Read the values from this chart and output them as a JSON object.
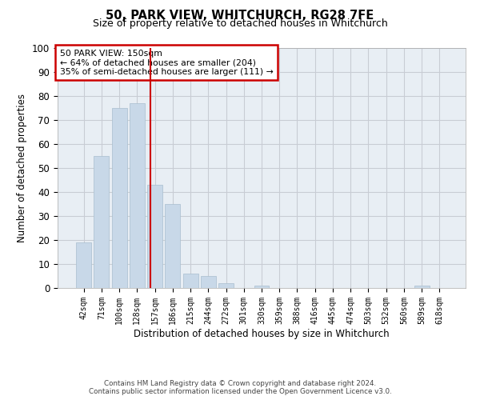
{
  "title": "50, PARK VIEW, WHITCHURCH, RG28 7FE",
  "subtitle": "Size of property relative to detached houses in Whitchurch",
  "xlabel": "Distribution of detached houses by size in Whitchurch",
  "ylabel": "Number of detached properties",
  "bar_labels": [
    "42sqm",
    "71sqm",
    "100sqm",
    "128sqm",
    "157sqm",
    "186sqm",
    "215sqm",
    "244sqm",
    "272sqm",
    "301sqm",
    "330sqm",
    "359sqm",
    "388sqm",
    "416sqm",
    "445sqm",
    "474sqm",
    "503sqm",
    "532sqm",
    "560sqm",
    "589sqm",
    "618sqm"
  ],
  "bar_values": [
    19,
    55,
    75,
    77,
    43,
    35,
    6,
    5,
    2,
    0,
    1,
    0,
    0,
    0,
    0,
    0,
    0,
    0,
    0,
    1,
    0
  ],
  "bar_color": "#c8d8e8",
  "bar_edge_color": "#a8bece",
  "grid_color": "#c8ccd4",
  "bg_color": "#e8eef4",
  "ylim": [
    0,
    100
  ],
  "yticks": [
    0,
    10,
    20,
    30,
    40,
    50,
    60,
    70,
    80,
    90,
    100
  ],
  "vline_pos": 3.76,
  "vline_color": "#cc0000",
  "annotation_text": "50 PARK VIEW: 150sqm\n← 64% of detached houses are smaller (204)\n35% of semi-detached houses are larger (111) →",
  "annotation_box_color": "#cc0000",
  "footer": "Contains HM Land Registry data © Crown copyright and database right 2024.\nContains public sector information licensed under the Open Government Licence v3.0."
}
